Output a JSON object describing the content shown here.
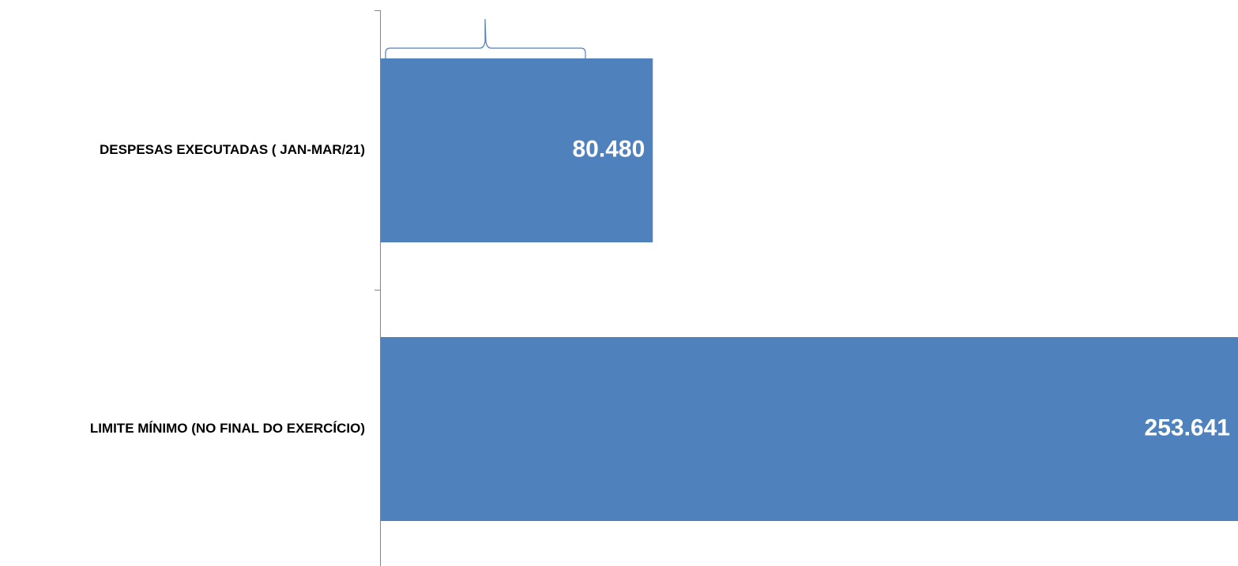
{
  "chart_data": {
    "type": "bar",
    "orientation": "horizontal",
    "categories": [
      "DESPESAS EXECUTADAS ( JAN-MAR/21)",
      "LIMITE MÍNIMO (NO FINAL DO EXERCÍCIO)"
    ],
    "values": [
      80480,
      253641
    ],
    "data_labels": [
      "80.480",
      "253.641"
    ],
    "xlim": [
      0,
      253641
    ],
    "grid": false,
    "legend": "none",
    "bar_color": "#4f81bd",
    "axis_color": "#868686",
    "annotation": "brace above first bar"
  }
}
